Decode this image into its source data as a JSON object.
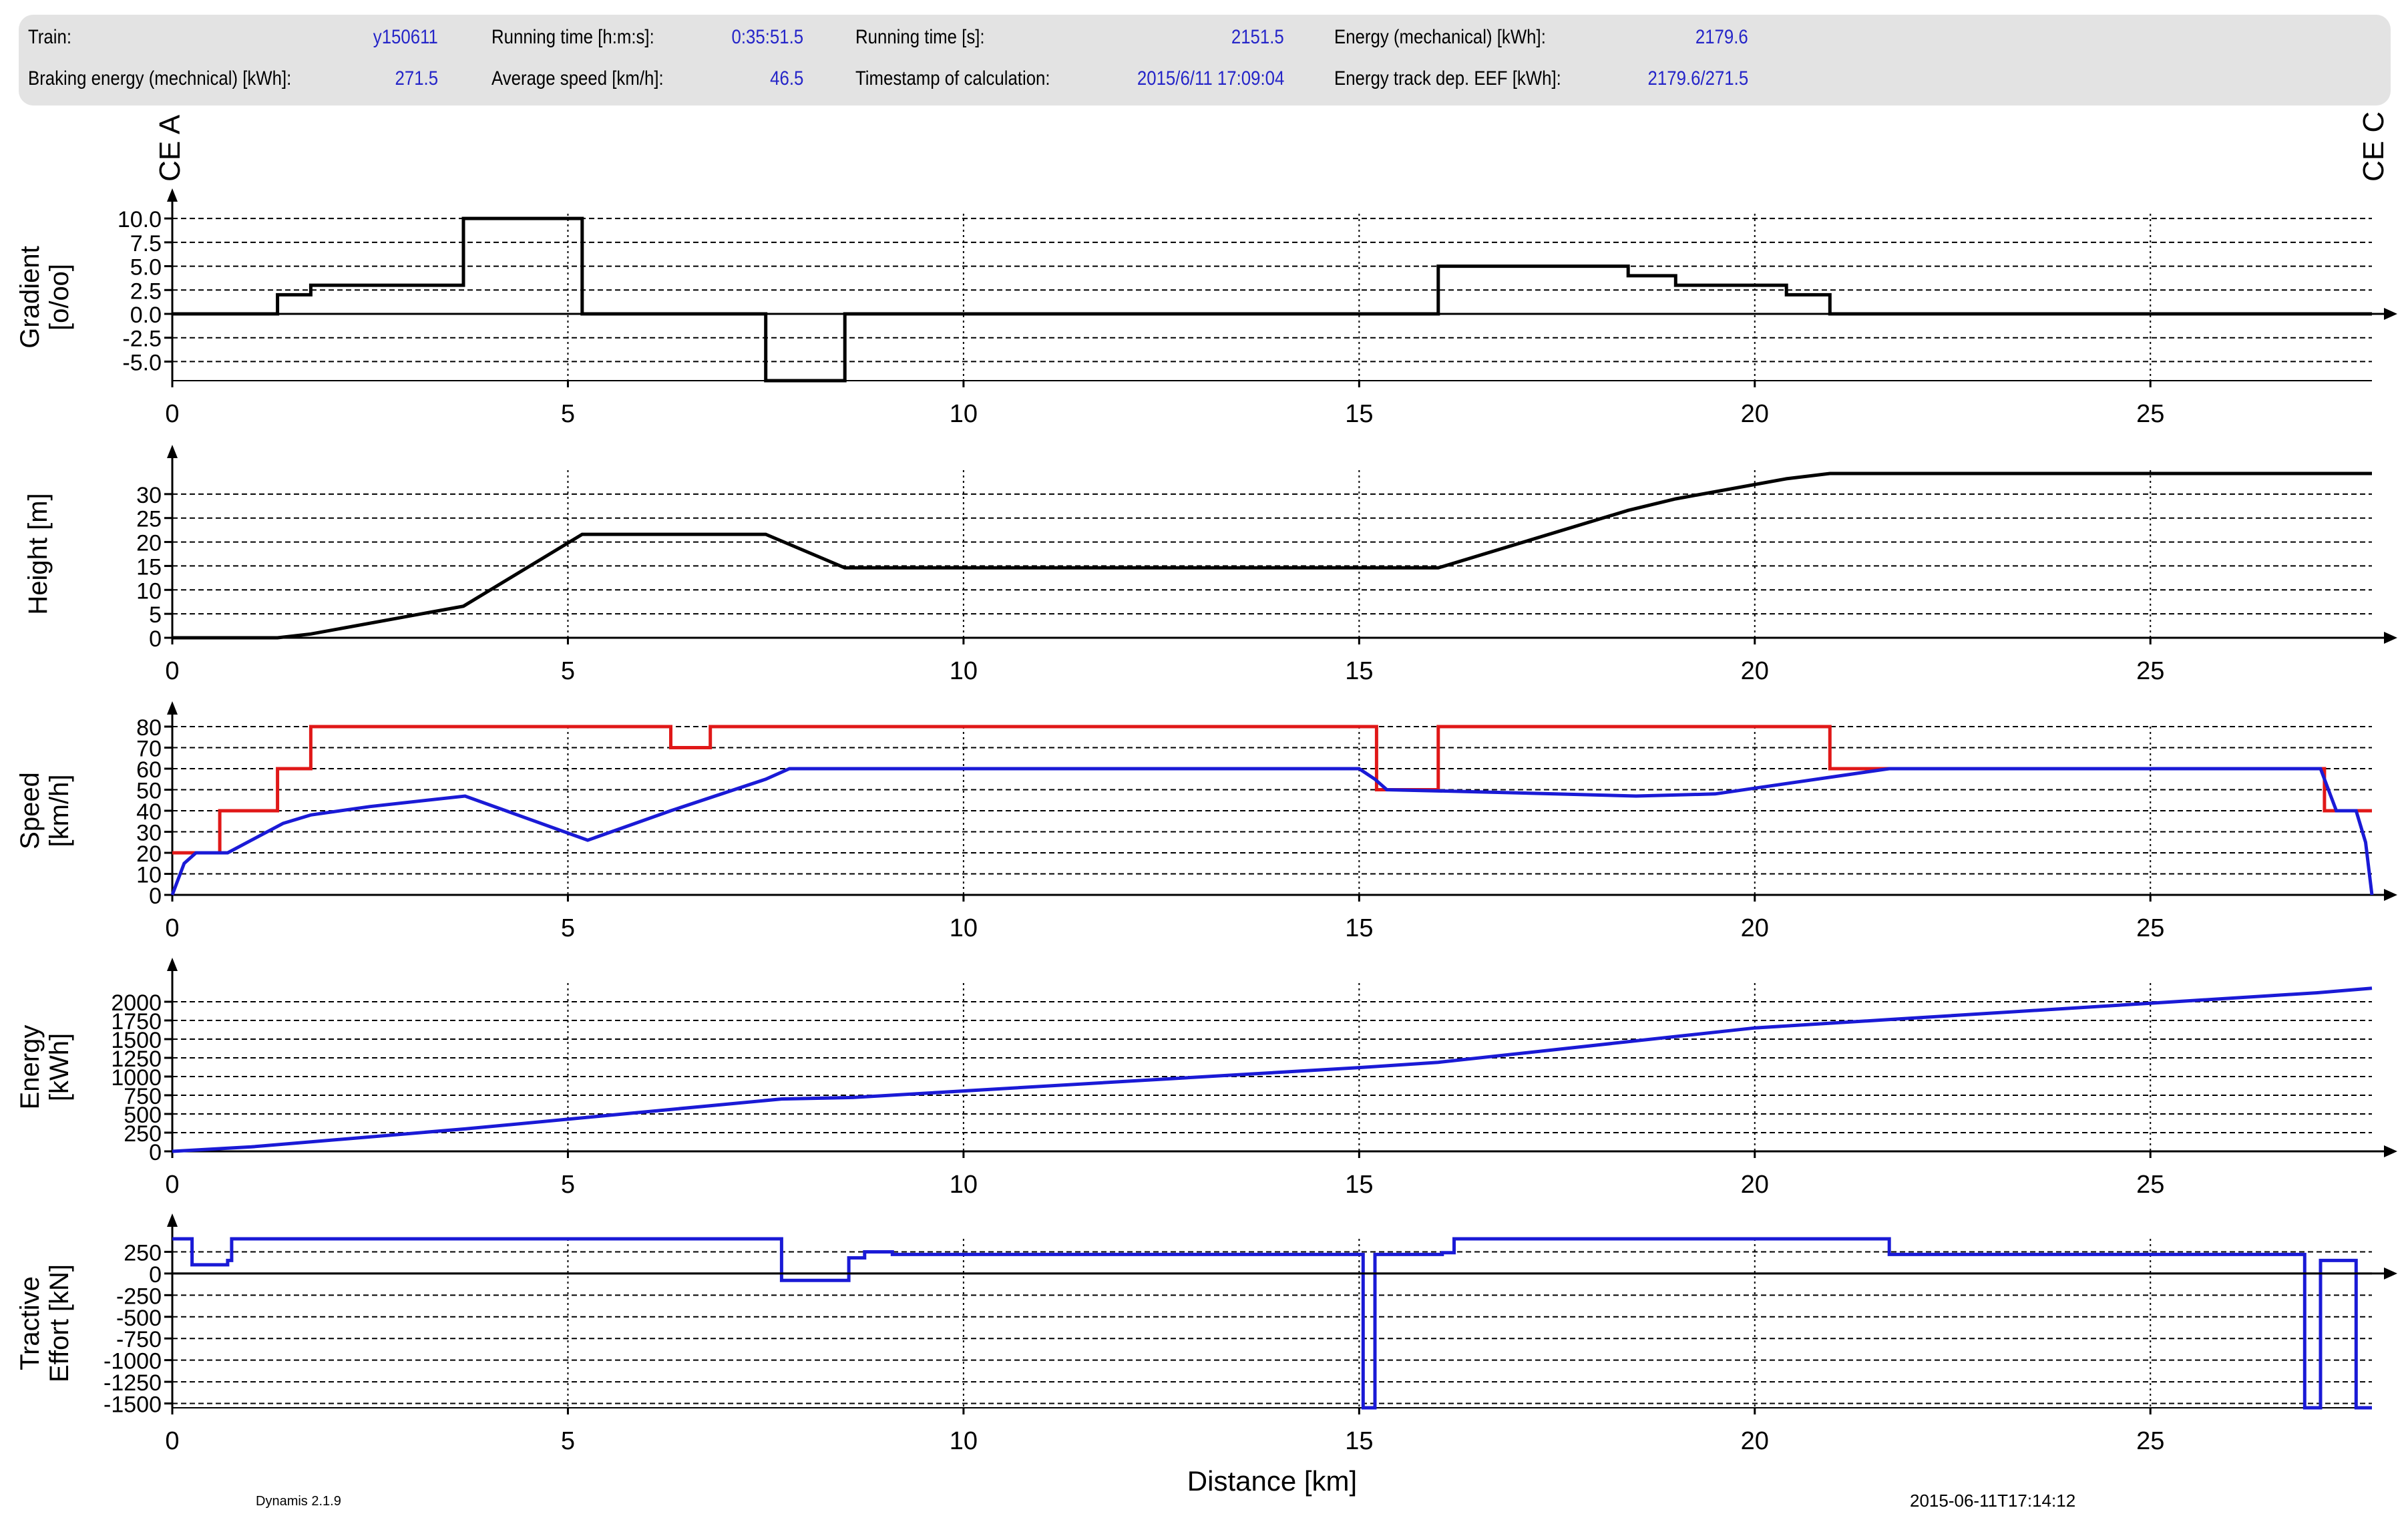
{
  "info_panel": {
    "rows": [
      [
        {
          "label": "Train:",
          "value": "y150611"
        },
        {
          "label": "Running time [h:m:s]:",
          "value": "0:35:51.5"
        },
        {
          "label": "Running time [s]:",
          "value": "2151.5"
        },
        {
          "label": "Energy (mechanical) [kWh]:",
          "value": "2179.6"
        }
      ],
      [
        {
          "label": "Braking energy (mechnical) [kWh]:",
          "value": "271.5"
        },
        {
          "label": "Average speed [km/h]:",
          "value": "46.5"
        },
        {
          "label": "Timestamp of calculation:",
          "value": "2015/6/11 17:09:04"
        },
        {
          "label": "Energy track dep. EEF [kWh]:",
          "value": "2179.6/271.5"
        }
      ]
    ]
  },
  "station_labels": {
    "start": "CE A",
    "end": "CE C"
  },
  "footer": {
    "software": "Dynamis 2.1.9",
    "timestamp": "2015-06-11T17:14:12"
  },
  "colors": {
    "black": "#000000",
    "red": "#e01818",
    "blue": "#1a1ad6",
    "value_text": "#2525c8",
    "panel": "#e3e3e3"
  },
  "chart_data": [
    {
      "type": "line",
      "ylabel": "Gradient\n[o/oo]",
      "xlabel": "",
      "xlim": [
        0,
        27.8
      ],
      "x_ticks": [
        "0",
        "5",
        "10",
        "15",
        "20",
        "25"
      ],
      "ylim": [
        -7,
        10.5
      ],
      "y_ticks": [
        "10.0",
        "7.5",
        "5.0",
        "2.5",
        "0.0",
        "-2.5",
        "-5.0"
      ],
      "grid": true,
      "series": [
        {
          "color": "#000000",
          "step": true,
          "x": [
            0,
            1.33,
            1.33,
            1.75,
            1.75,
            3.68,
            3.68,
            5.18,
            5.18,
            7.5,
            7.5,
            8.5,
            8.5,
            16.0,
            16.0,
            18.4,
            18.4,
            19.0,
            19.0,
            20.4,
            20.4,
            20.95,
            20.95,
            27.8
          ],
          "y": [
            0,
            0,
            2,
            2,
            3,
            3,
            10,
            10,
            0,
            0,
            -7,
            -7,
            0,
            0,
            5,
            5,
            4,
            4,
            3,
            3,
            2,
            2,
            0,
            0
          ]
        }
      ]
    },
    {
      "type": "line",
      "ylabel": "Height [m]",
      "xlabel": "",
      "xlim": [
        0,
        27.8
      ],
      "x_ticks": [
        "0",
        "5",
        "10",
        "15",
        "20",
        "25"
      ],
      "ylim": [
        0,
        35
      ],
      "y_ticks": [
        "30",
        "25",
        "20",
        "15",
        "10",
        "5",
        "0"
      ],
      "grid": true,
      "series": [
        {
          "color": "#000000",
          "x": [
            0,
            1.33,
            1.75,
            3.68,
            5.18,
            7.5,
            8.5,
            16.0,
            18.4,
            19.0,
            20.4,
            20.95,
            27.8
          ],
          "y": [
            0,
            0,
            0.8,
            6.6,
            21.6,
            21.6,
            14.6,
            14.6,
            26.6,
            29.0,
            33.2,
            34.3,
            34.3
          ]
        }
      ]
    },
    {
      "type": "line",
      "ylabel": "Speed\n[km/h]",
      "xlabel": "",
      "xlim": [
        0,
        27.8
      ],
      "x_ticks": [
        "0",
        "5",
        "10",
        "15",
        "20",
        "25"
      ],
      "ylim": [
        0,
        80
      ],
      "y_ticks": [
        "80",
        "70",
        "60",
        "50",
        "40",
        "30",
        "20",
        "10",
        "0"
      ],
      "grid": true,
      "series": [
        {
          "color": "#e01818",
          "step": true,
          "x": [
            0,
            0.6,
            0.6,
            1.33,
            1.33,
            1.75,
            1.75,
            6.3,
            6.3,
            6.8,
            6.8,
            15.22,
            15.22,
            16.0,
            16.0,
            20.95,
            20.95,
            21.7,
            21.7,
            27.2,
            27.2,
            27.8
          ],
          "y": [
            20,
            20,
            40,
            40,
            60,
            60,
            80,
            80,
            70,
            70,
            80,
            80,
            50,
            50,
            80,
            80,
            60,
            60,
            60,
            60,
            40,
            40
          ]
        },
        {
          "color": "#1a1ad6",
          "x": [
            0,
            0.05,
            0.15,
            0.3,
            0.7,
            1.0,
            1.4,
            1.75,
            2.5,
            3.7,
            5.25,
            6.3,
            7.5,
            7.8,
            15.0,
            15.2,
            15.35,
            16.5,
            18.5,
            19.5,
            21.7,
            27.15,
            27.35,
            27.6,
            27.72,
            27.8
          ],
          "y": [
            0,
            5,
            15,
            20,
            20,
            26,
            34,
            38,
            42,
            47,
            26,
            40,
            55,
            60,
            60,
            55,
            50,
            49,
            47,
            48,
            60,
            60,
            40,
            40,
            25,
            0
          ]
        }
      ]
    },
    {
      "type": "line",
      "ylabel": "Energy\n[kWh]",
      "xlabel": "",
      "xlim": [
        0,
        27.8
      ],
      "x_ticks": [
        "0",
        "5",
        "10",
        "15",
        "20",
        "25"
      ],
      "ylim": [
        0,
        2250
      ],
      "y_ticks": [
        "2000",
        "1750",
        "1500",
        "1250",
        "1000",
        "750",
        "500",
        "250",
        "0"
      ],
      "grid": true,
      "series": [
        {
          "color": "#1a1ad6",
          "x": [
            0,
            1.0,
            3.7,
            7.7,
            8.6,
            15.0,
            16.0,
            20.0,
            25.0,
            27.1,
            27.8
          ],
          "y": [
            0,
            60,
            300,
            700,
            720,
            1120,
            1190,
            1650,
            1980,
            2120,
            2180
          ]
        }
      ]
    },
    {
      "type": "line",
      "ylabel": "Tractive\nEffort [kN]",
      "xlabel": "Distance [km]",
      "xlim": [
        0,
        27.8
      ],
      "x_ticks": [
        "0",
        "5",
        "10",
        "15",
        "20",
        "25"
      ],
      "ylim": [
        -1550,
        400
      ],
      "y_ticks": [
        "250",
        "0",
        "-250",
        "-500",
        "-750",
        "-1000",
        "-1250",
        "-1500"
      ],
      "grid": true,
      "series": [
        {
          "color": "#1a1ad6",
          "step": true,
          "x": [
            0,
            0.25,
            0.25,
            0.7,
            0.7,
            0.75,
            0.75,
            7.7,
            7.7,
            8.55,
            8.55,
            8.75,
            8.75,
            9.1,
            9.1,
            15.05,
            15.05,
            15.2,
            15.2,
            16.05,
            16.05,
            16.2,
            16.2,
            21.7,
            21.7,
            26.95,
            26.95,
            27.15,
            27.15,
            27.6,
            27.6,
            27.8
          ],
          "y": [
            400,
            400,
            100,
            100,
            150,
            150,
            400,
            400,
            -80,
            -80,
            180,
            180,
            250,
            250,
            220,
            220,
            -1550,
            -1550,
            220,
            220,
            240,
            240,
            400,
            400,
            220,
            220,
            -1550,
            -1550,
            150,
            150,
            -1550,
            -1550
          ]
        },
        {
          "color": "#000000",
          "x": [
            0,
            27.8
          ],
          "y": [
            0,
            0
          ]
        }
      ]
    }
  ]
}
